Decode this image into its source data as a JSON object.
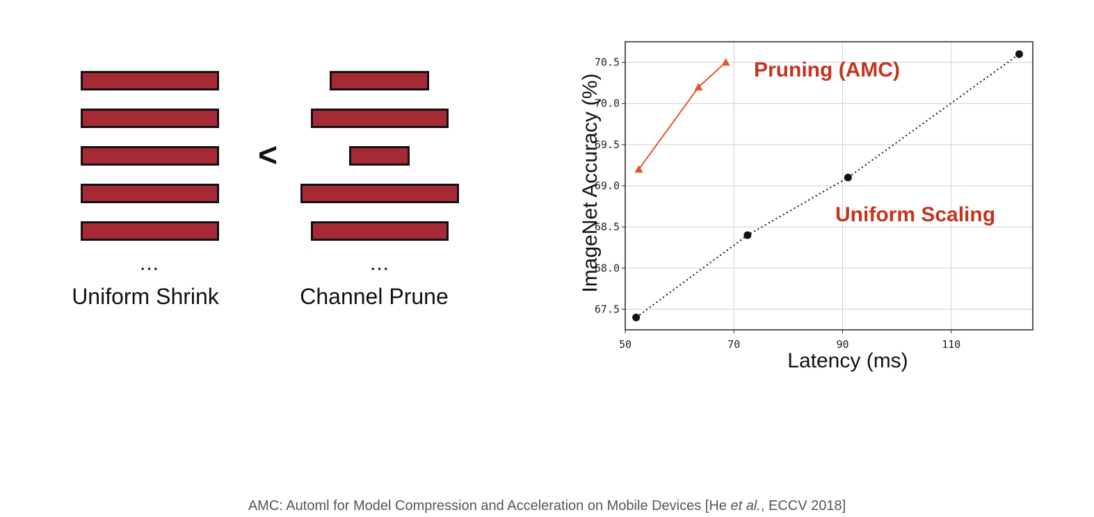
{
  "diagram": {
    "comparison_symbol": "<",
    "left": {
      "label": "Uniform Shrink",
      "ellipsis": "...",
      "widths": [
        1,
        1,
        1,
        1,
        1
      ]
    },
    "right": {
      "label": "Channel Prune",
      "ellipsis": "...",
      "widths": [
        0.72,
        1,
        0.44,
        1.15,
        1
      ]
    },
    "bar_color": "#a52a35"
  },
  "chart_data": {
    "type": "line",
    "xlabel": "Latency (ms)",
    "ylabel": "ImageNet Accuracy (%)",
    "xlim": [
      50,
      125
    ],
    "ylim": [
      67.25,
      70.75
    ],
    "xticks": [
      "50",
      "70",
      "90",
      "110"
    ],
    "yticks": [
      "67.5",
      "68.0",
      "68.5",
      "69.0",
      "69.5",
      "70.0",
      "70.5"
    ],
    "grid": true,
    "series": [
      {
        "name": "Pruning (AMC)",
        "color": "#e4552b",
        "marker": "triangle",
        "line": "solid",
        "x": [
          52.5,
          63.5,
          68.5
        ],
        "y": [
          69.2,
          70.2,
          70.5
        ]
      },
      {
        "name": "Uniform Scaling",
        "color": "#111111",
        "marker": "circle",
        "line": "dotted",
        "x": [
          52,
          72.5,
          91,
          122.5
        ],
        "y": [
          67.4,
          68.4,
          69.1,
          70.6
        ]
      }
    ],
    "label_color": "#c4341f"
  },
  "citation": {
    "prefix": "AMC: Automl for Model Compression and Acceleration on Mobile Devices [He ",
    "etal": "et al.",
    "suffix": ", ECCV 2018]"
  }
}
